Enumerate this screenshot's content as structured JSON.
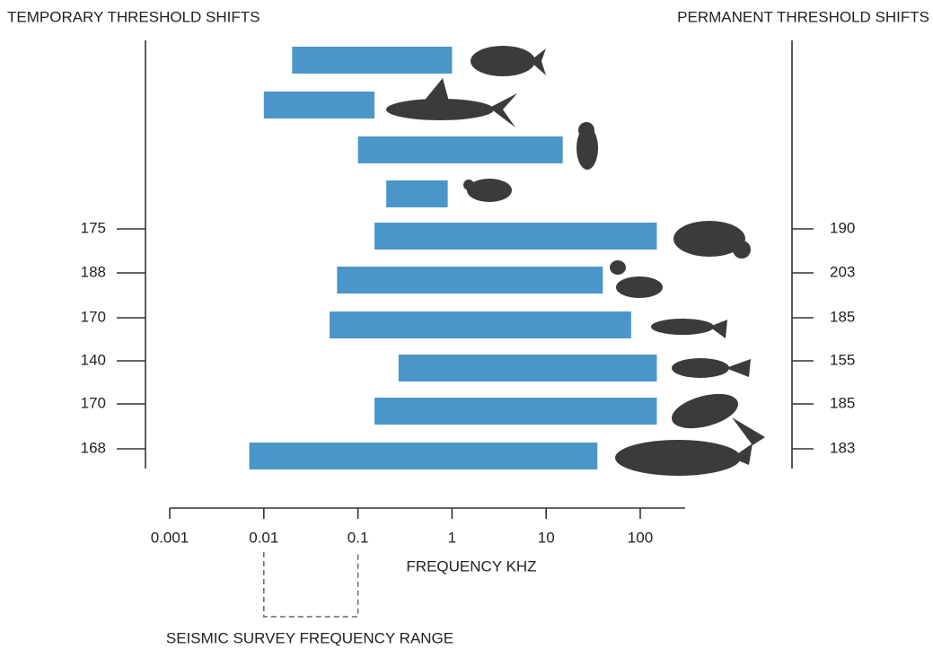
{
  "chart_data": {
    "type": "range_bar",
    "left_title": "TEMPORARY THRESHOLD SHIFTS",
    "right_title": "PERMANENT THRESHOLD SHIFTS",
    "x_label": "FREQUENCY KHZ",
    "seismic_label": "SEISMIC SURVEY FREQUENCY RANGE",
    "seismic_range": [
      0.01,
      0.1
    ],
    "low": [
      0.02,
      0.01,
      0.1,
      0.2,
      0.15,
      0.06,
      0.05,
      0.27,
      0.15,
      0.007
    ],
    "high": [
      1,
      0.15,
      15,
      0.9,
      150,
      40,
      80,
      150,
      150,
      35
    ],
    "temporary": [
      null,
      null,
      null,
      null,
      175,
      188,
      170,
      140,
      170,
      168
    ],
    "permanent": [
      null,
      null,
      null,
      null,
      190,
      203,
      185,
      155,
      185,
      183
    ],
    "color": "#4a96c8",
    "log_x": true,
    "xlim": [
      0.001,
      300
    ],
    "xticks": [
      0.001,
      0.01,
      0.1,
      1,
      10,
      100
    ]
  }
}
